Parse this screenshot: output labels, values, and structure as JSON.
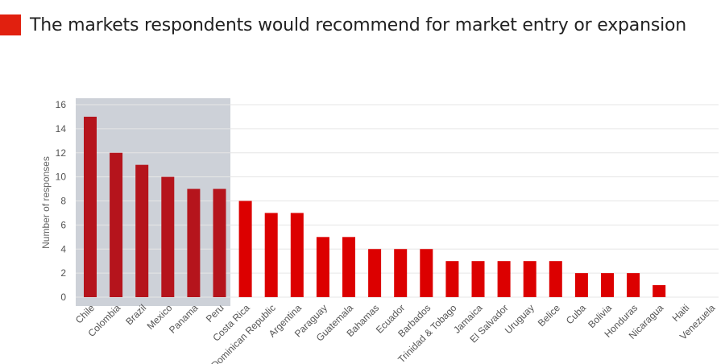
{
  "title": "The markets respondents would recommend for market entry or expansion",
  "colors": {
    "title_square": "#e1200f",
    "bar_highlight": "#b5141c",
    "bar_default": "#dc0000",
    "highlight_band": "#cdd1d8",
    "gridline": "#e6e6e6",
    "axis": "#bfbfbf"
  },
  "chart_data": {
    "type": "bar",
    "title": "The markets respondents would recommend for market entry or expansion",
    "xlabel": "",
    "ylabel": "Number of responses",
    "ylim": [
      0,
      16
    ],
    "yticks": [
      0,
      2,
      4,
      6,
      8,
      10,
      12,
      14,
      16
    ],
    "grid": true,
    "highlighted_categories": [
      "Chile",
      "Colombia",
      "Brazil",
      "Mexico",
      "Panama",
      "Peru"
    ],
    "categories": [
      "Chile",
      "Colombia",
      "Brazil",
      "Mexico",
      "Panama",
      "Peru",
      "Costa Rica",
      "Dominican Republic",
      "Argentina",
      "Paraguay",
      "Guatemala",
      "Bahamas",
      "Ecuador",
      "Barbados",
      "Trinidad & Tobago",
      "Jamaica",
      "El Salvador",
      "Uruguay",
      "Belice",
      "Cuba",
      "Bolivia",
      "Honduras",
      "Nicaragua",
      "Haiti",
      "Venezuela"
    ],
    "values": [
      15,
      12,
      11,
      10,
      9,
      9,
      8,
      7,
      7,
      5,
      5,
      4,
      4,
      4,
      3,
      3,
      3,
      3,
      3,
      2,
      2,
      2,
      1,
      0,
      0
    ]
  }
}
